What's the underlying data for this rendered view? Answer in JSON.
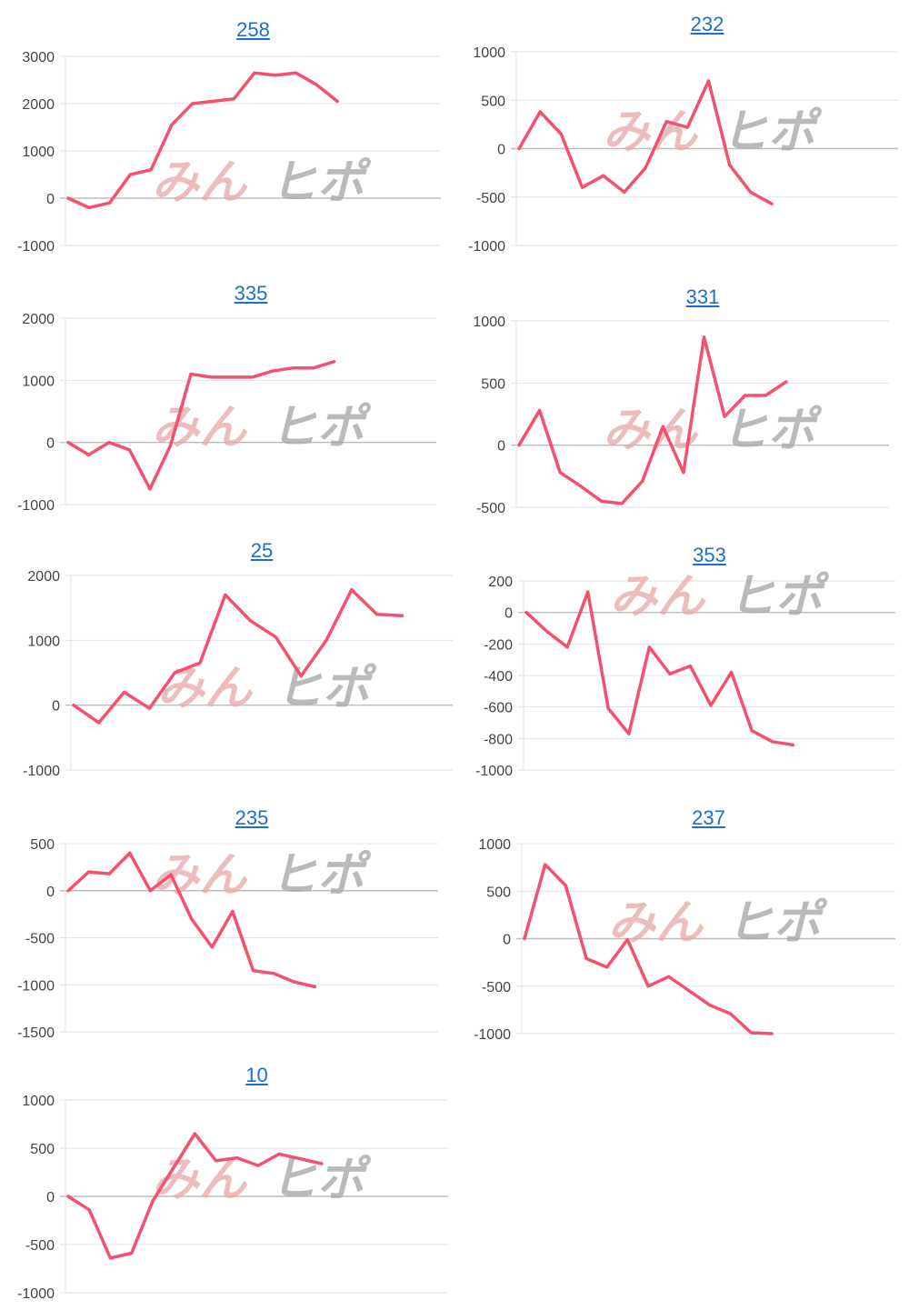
{
  "colors": {
    "series": "#f5516f",
    "grid": "#e3e3e3",
    "zero": "#bdbdbd",
    "link": "#1a6fd1",
    "axis_text": "#444444"
  },
  "watermark": {
    "part1": "みん",
    "part2": "ヒポ"
  },
  "chart_data": [
    {
      "type": "line",
      "title": "258",
      "ylim": [
        -1000,
        3000
      ],
      "yticks": [
        -1000,
        0,
        1000,
        2000,
        3000
      ],
      "x_count": 19,
      "grid": true,
      "series": [
        {
          "values": [
            0,
            -200,
            -100,
            500,
            600,
            1550,
            2000,
            2050,
            2100,
            2650,
            2600,
            2650,
            2400,
            2050
          ]
        }
      ]
    },
    {
      "type": "line",
      "title": "232",
      "ylim": [
        -1000,
        1000
      ],
      "yticks": [
        -1000,
        -500,
        0,
        500,
        1000
      ],
      "x_count": 19,
      "grid": true,
      "series": [
        {
          "values": [
            0,
            380,
            150,
            -400,
            -280,
            -450,
            -200,
            280,
            220,
            700,
            -170,
            -450,
            -570
          ]
        }
      ]
    },
    {
      "type": "line",
      "title": "335",
      "ylim": [
        -1000,
        2000
      ],
      "yticks": [
        -1000,
        0,
        1000,
        2000
      ],
      "x_count": 19,
      "grid": true,
      "series": [
        {
          "values": [
            0,
            -200,
            0,
            -120,
            -750,
            -50,
            1100,
            1050,
            1050,
            1050,
            1150,
            1200,
            1200,
            1300
          ]
        }
      ]
    },
    {
      "type": "line",
      "title": "331",
      "ylim": [
        -500,
        1000
      ],
      "yticks": [
        -500,
        0,
        500,
        1000
      ],
      "x_count": 19,
      "grid": true,
      "series": [
        {
          "values": [
            0,
            280,
            -220,
            -330,
            -450,
            -470,
            -290,
            150,
            -220,
            870,
            230,
            400,
            400,
            510
          ]
        }
      ]
    },
    {
      "type": "line",
      "title": "25",
      "ylim": [
        -1000,
        2000
      ],
      "yticks": [
        -1000,
        0,
        1000,
        2000
      ],
      "x_count": 16,
      "grid": true,
      "series": [
        {
          "values": [
            0,
            -270,
            200,
            -50,
            500,
            650,
            1700,
            1300,
            1050,
            450,
            1000,
            1780,
            1400,
            1380
          ]
        }
      ]
    },
    {
      "type": "line",
      "title": "353",
      "ylim": [
        -1000,
        200
      ],
      "yticks": [
        -1000,
        -800,
        -600,
        -400,
        -200,
        0,
        200
      ],
      "x_count": 19,
      "grid": true,
      "series": [
        {
          "values": [
            0,
            -120,
            -220,
            130,
            -610,
            -770,
            -220,
            -390,
            -340,
            -590,
            -380,
            -750,
            -820,
            -840
          ]
        }
      ]
    },
    {
      "type": "line",
      "title": "235",
      "ylim": [
        -1500,
        500
      ],
      "yticks": [
        -1500,
        -1000,
        -500,
        0,
        500
      ],
      "x_count": 19,
      "grid": true,
      "series": [
        {
          "values": [
            0,
            200,
            180,
            400,
            0,
            170,
            -300,
            -600,
            -220,
            -850,
            -880,
            -970,
            -1020
          ]
        }
      ]
    },
    {
      "type": "line",
      "title": "237",
      "ylim": [
        -1000,
        1000
      ],
      "yticks": [
        -1000,
        -500,
        0,
        500,
        1000
      ],
      "x_count": 19,
      "grid": true,
      "series": [
        {
          "values": [
            0,
            780,
            560,
            -210,
            -300,
            -10,
            -500,
            -400,
            -550,
            -700,
            -790,
            -990,
            -1000
          ]
        }
      ]
    },
    {
      "type": "line",
      "title": "10",
      "ylim": [
        -1000,
        1000
      ],
      "yticks": [
        -1000,
        -500,
        0,
        500,
        1000
      ],
      "x_count": 19,
      "grid": true,
      "series": [
        {
          "values": [
            0,
            -140,
            -640,
            -590,
            -50,
            300,
            650,
            370,
            400,
            320,
            440,
            390,
            340
          ]
        }
      ]
    }
  ]
}
